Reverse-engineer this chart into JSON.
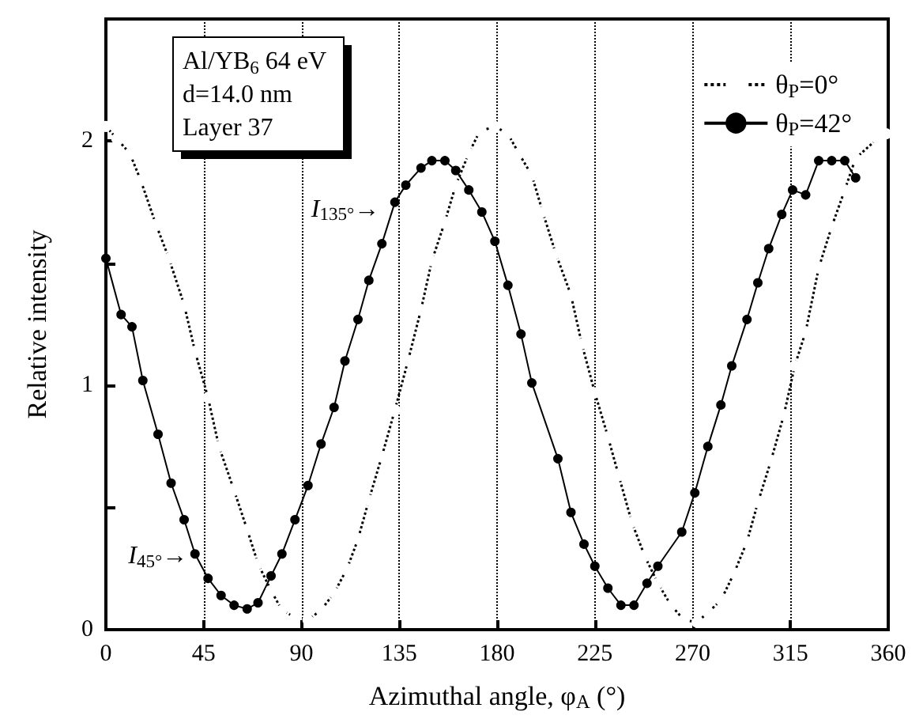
{
  "chart_data": {
    "type": "line",
    "xlabel": "Azimuthal angle, φ$_{A}$ (°)",
    "ylabel": "Relative intensity",
    "xlim": [
      0,
      360
    ],
    "xticks": [
      0,
      45,
      90,
      135,
      180,
      225,
      270,
      315,
      360
    ],
    "ylim": [
      0,
      2.5
    ],
    "yticks": [
      0,
      {
        "value": 0.5,
        "label": null
      },
      1,
      {
        "value": 1.5,
        "label": null
      },
      2
    ],
    "grid": "x",
    "legend": "top right",
    "marker": "circle",
    "series": [
      {
        "name": "θ$_{P}$=0°",
        "color": "#000000",
        "line_style": "dotted",
        "x": [
          0,
          5,
          11,
          16,
          23,
          29,
          36,
          41,
          47,
          52,
          59,
          65,
          70,
          76,
          81,
          87,
          93,
          99,
          105,
          111,
          116,
          121,
          127,
          133,
          139,
          145,
          150,
          156,
          161,
          167,
          172,
          179,
          185,
          190,
          196,
          201,
          207,
          214,
          219,
          225,
          231,
          236,
          242,
          248,
          254,
          260,
          266,
          272,
          277,
          283,
          289,
          295,
          300,
          306,
          312,
          317,
          322,
          328,
          334,
          340,
          345,
          355,
          359
        ],
        "values": [
          2.06,
          2.01,
          1.95,
          1.84,
          1.66,
          1.52,
          1.33,
          1.14,
          0.95,
          0.75,
          0.57,
          0.41,
          0.27,
          0.16,
          0.08,
          0.05,
          0.04,
          0.08,
          0.15,
          0.25,
          0.37,
          0.53,
          0.71,
          0.9,
          1.1,
          1.31,
          1.51,
          1.67,
          1.82,
          1.95,
          2.04,
          2.06,
          2.03,
          1.95,
          1.86,
          1.71,
          1.54,
          1.37,
          1.17,
          0.97,
          0.79,
          0.63,
          0.44,
          0.3,
          0.19,
          0.1,
          0.04,
          0.03,
          0.07,
          0.12,
          0.23,
          0.36,
          0.52,
          0.69,
          0.88,
          1.08,
          1.22,
          1.48,
          1.65,
          1.8,
          1.93,
          2.01,
          2.03
        ]
      },
      {
        "name": "θ$_{P}$=42°",
        "color": "#000000",
        "line_style": "solid",
        "x": [
          0,
          7,
          12,
          17,
          24,
          30,
          36,
          41,
          47,
          53,
          59,
          65,
          70,
          76,
          81,
          87,
          93,
          99,
          105,
          110,
          116,
          121,
          127,
          133,
          138,
          145,
          150,
          156,
          161,
          167,
          173,
          179,
          185,
          191,
          196,
          208,
          214,
          220,
          225,
          231,
          237,
          243,
          249,
          254,
          265,
          271,
          277,
          283,
          288,
          295,
          300,
          305,
          311,
          316,
          322,
          328,
          334,
          340,
          345
        ],
        "values": [
          1.52,
          1.29,
          1.24,
          1.02,
          0.8,
          0.6,
          0.45,
          0.31,
          0.21,
          0.14,
          0.1,
          0.085,
          0.11,
          0.22,
          0.31,
          0.45,
          0.59,
          0.76,
          0.91,
          1.1,
          1.27,
          1.43,
          1.58,
          1.75,
          1.82,
          1.89,
          1.92,
          1.92,
          1.88,
          1.8,
          1.71,
          1.59,
          1.41,
          1.21,
          1.01,
          0.7,
          0.48,
          0.35,
          0.26,
          0.17,
          0.1,
          0.1,
          0.19,
          0.26,
          0.4,
          0.56,
          0.75,
          0.92,
          1.08,
          1.27,
          1.42,
          1.56,
          1.7,
          1.8,
          1.78,
          1.92,
          1.92,
          1.92,
          1.85
        ]
      }
    ],
    "annotations": [
      "Al/YB$_{6}$ 64 eV",
      "d=14.0 nm",
      "Layer 37",
      {
        "text": "I$_{135°}$→",
        "x": 135,
        "y": 1.72
      },
      {
        "text": "I$_{45°}$→",
        "x": 45,
        "y": 0.3
      }
    ]
  }
}
